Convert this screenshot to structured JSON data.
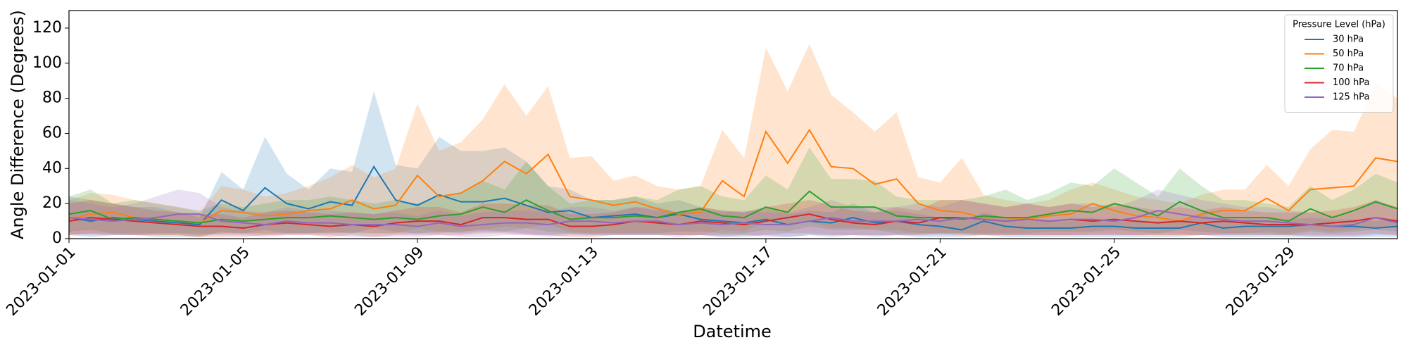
{
  "chart_data": {
    "type": "line",
    "xlabel": "Datetime",
    "ylabel": "Angle Difference (Degrees)",
    "legend_title": "Pressure Level (hPa)",
    "legend_loc": "upper right",
    "categories": [
      "2023-01-01",
      null,
      null,
      null,
      null,
      null,
      null,
      null,
      "2023-01-05",
      null,
      null,
      null,
      null,
      null,
      null,
      null,
      "2023-01-09",
      null,
      null,
      null,
      null,
      null,
      null,
      null,
      "2023-01-13",
      null,
      null,
      null,
      null,
      null,
      null,
      null,
      "2023-01-17",
      null,
      null,
      null,
      null,
      null,
      null,
      null,
      "2023-01-21",
      null,
      null,
      null,
      null,
      null,
      null,
      null,
      "2023-01-25",
      null,
      null,
      null,
      null,
      null,
      null,
      null,
      "2023-01-29",
      null,
      null,
      null,
      null,
      null
    ],
    "ylim": [
      0,
      130
    ],
    "yticks": [
      0,
      20,
      40,
      60,
      80,
      100,
      120
    ],
    "series": [
      {
        "name": "30 hPa",
        "color": "#1f77b4",
        "values": [
          12,
          10,
          12,
          11,
          10,
          9,
          8,
          22,
          16,
          29,
          20,
          17,
          21,
          19,
          41,
          22,
          19,
          25,
          21,
          21,
          23,
          19,
          15,
          16,
          12,
          13,
          14,
          12,
          14,
          11,
          10,
          9,
          11,
          8,
          10,
          9,
          12,
          9,
          10,
          8,
          7,
          5,
          10,
          7,
          6,
          6,
          6,
          7,
          7,
          6,
          6,
          6,
          9,
          6,
          7,
          7,
          7,
          8,
          7,
          7,
          6,
          7
        ],
        "lower": [
          2,
          1,
          2,
          2,
          1,
          1,
          1,
          4,
          3,
          5,
          3,
          3,
          4,
          3,
          6,
          4,
          3,
          4,
          3,
          4,
          4,
          3,
          2,
          3,
          2,
          2,
          2,
          2,
          2,
          2,
          1,
          1,
          2,
          1,
          2,
          1,
          2,
          1,
          2,
          1,
          1,
          1,
          2,
          1,
          1,
          1,
          1,
          1,
          1,
          1,
          1,
          1,
          2,
          1,
          1,
          1,
          1,
          1,
          1,
          1,
          1,
          1
        ],
        "upper": [
          24,
          22,
          20,
          18,
          18,
          15,
          12,
          38,
          28,
          58,
          37,
          28,
          40,
          38,
          84,
          42,
          40,
          58,
          50,
          50,
          52,
          44,
          30,
          28,
          22,
          22,
          24,
          20,
          22,
          18,
          16,
          15,
          18,
          14,
          16,
          15,
          20,
          15,
          16,
          14,
          12,
          10,
          15,
          12,
          10,
          10,
          10,
          11,
          11,
          10,
          10,
          10,
          14,
          10,
          11,
          11,
          11,
          12,
          11,
          11,
          10,
          11
        ]
      },
      {
        "name": "50 hPa",
        "color": "#ff7f0e",
        "values": [
          11,
          14,
          15,
          12,
          11,
          10,
          9,
          16,
          15,
          13,
          14,
          16,
          17,
          22,
          17,
          19,
          36,
          24,
          26,
          33,
          44,
          37,
          48,
          24,
          22,
          19,
          21,
          17,
          14,
          15,
          33,
          24,
          61,
          43,
          62,
          41,
          40,
          31,
          34,
          20,
          16,
          15,
          12,
          12,
          11,
          13,
          14,
          20,
          16,
          13,
          12,
          10,
          14,
          16,
          16,
          23,
          16,
          28,
          29,
          30,
          46,
          44
        ],
        "lower": [
          2,
          3,
          3,
          2,
          2,
          2,
          1,
          3,
          3,
          2,
          3,
          3,
          3,
          4,
          3,
          3,
          6,
          4,
          4,
          5,
          7,
          6,
          8,
          4,
          3,
          3,
          3,
          3,
          2,
          2,
          5,
          4,
          10,
          7,
          10,
          6,
          6,
          5,
          5,
          3,
          3,
          2,
          2,
          2,
          2,
          2,
          2,
          3,
          3,
          2,
          2,
          2,
          2,
          3,
          3,
          4,
          3,
          5,
          4,
          5,
          7,
          6
        ],
        "upper": [
          22,
          26,
          25,
          22,
          20,
          18,
          15,
          30,
          28,
          24,
          26,
          30,
          35,
          42,
          35,
          40,
          77,
          50,
          55,
          68,
          88,
          70,
          87,
          46,
          47,
          33,
          36,
          30,
          28,
          30,
          62,
          46,
          109,
          84,
          111,
          82,
          72,
          61,
          72,
          35,
          32,
          46,
          25,
          22,
          20,
          22,
          28,
          32,
          28,
          24,
          22,
          20,
          25,
          28,
          28,
          42,
          30,
          51,
          62,
          61,
          88,
          80
        ]
      },
      {
        "name": "70 hPa",
        "color": "#2ca02c",
        "values": [
          14,
          16,
          11,
          12,
          11,
          10,
          9,
          11,
          10,
          11,
          12,
          12,
          13,
          12,
          11,
          12,
          11,
          13,
          14,
          18,
          15,
          22,
          16,
          11,
          12,
          12,
          13,
          12,
          15,
          17,
          13,
          12,
          18,
          15,
          27,
          18,
          18,
          18,
          13,
          12,
          12,
          11,
          13,
          12,
          12,
          14,
          16,
          15,
          20,
          17,
          13,
          21,
          16,
          12,
          12,
          12,
          10,
          17,
          12,
          16,
          21,
          17
        ],
        "lower": [
          4,
          5,
          3,
          3,
          3,
          3,
          2,
          3,
          3,
          3,
          3,
          3,
          3,
          3,
          3,
          3,
          3,
          3,
          4,
          5,
          4,
          6,
          4,
          3,
          3,
          3,
          3,
          3,
          4,
          4,
          3,
          3,
          5,
          4,
          7,
          5,
          5,
          5,
          3,
          3,
          3,
          3,
          3,
          3,
          3,
          4,
          4,
          4,
          5,
          4,
          3,
          5,
          4,
          3,
          3,
          3,
          2,
          4,
          3,
          4,
          5,
          4
        ],
        "upper": [
          24,
          28,
          20,
          22,
          20,
          18,
          16,
          20,
          18,
          20,
          22,
          22,
          24,
          22,
          20,
          22,
          20,
          24,
          26,
          33,
          28,
          44,
          30,
          20,
          22,
          22,
          24,
          22,
          28,
          30,
          24,
          22,
          36,
          28,
          52,
          34,
          34,
          33,
          24,
          22,
          22,
          22,
          24,
          28,
          22,
          26,
          32,
          30,
          40,
          32,
          24,
          40,
          30,
          22,
          22,
          20,
          18,
          30,
          22,
          28,
          37,
          32
        ]
      },
      {
        "name": "100 hPa",
        "color": "#d62728",
        "values": [
          10,
          12,
          11,
          10,
          9,
          8,
          7,
          7,
          6,
          8,
          9,
          8,
          7,
          8,
          7,
          9,
          10,
          10,
          8,
          12,
          12,
          11,
          11,
          7,
          7,
          8,
          10,
          9,
          8,
          10,
          9,
          8,
          10,
          12,
          14,
          11,
          9,
          8,
          10,
          9,
          12,
          12,
          11,
          10,
          11,
          10,
          11,
          10,
          11,
          10,
          9,
          10,
          9,
          10,
          9,
          8,
          8,
          8,
          9,
          10,
          12,
          10
        ],
        "lower": [
          2,
          3,
          2,
          2,
          2,
          2,
          1,
          1,
          1,
          2,
          2,
          2,
          1,
          2,
          1,
          2,
          2,
          2,
          2,
          3,
          3,
          2,
          2,
          1,
          1,
          2,
          2,
          2,
          2,
          2,
          2,
          2,
          2,
          3,
          3,
          2,
          2,
          2,
          2,
          2,
          3,
          3,
          2,
          2,
          2,
          2,
          2,
          2,
          2,
          2,
          2,
          2,
          2,
          2,
          2,
          2,
          2,
          2,
          2,
          2,
          3,
          2
        ],
        "upper": [
          20,
          22,
          20,
          18,
          16,
          15,
          14,
          14,
          12,
          15,
          16,
          15,
          14,
          15,
          14,
          16,
          18,
          18,
          15,
          20,
          20,
          19,
          19,
          14,
          14,
          15,
          18,
          16,
          15,
          18,
          16,
          15,
          18,
          20,
          22,
          19,
          16,
          15,
          18,
          16,
          22,
          22,
          20,
          18,
          20,
          18,
          20,
          18,
          20,
          18,
          16,
          18,
          16,
          18,
          16,
          15,
          15,
          15,
          16,
          18,
          22,
          18
        ]
      },
      {
        "name": "125 hPa",
        "color": "#9467bd",
        "values": [
          12,
          11,
          10,
          11,
          12,
          14,
          14,
          10,
          9,
          8,
          10,
          9,
          9,
          8,
          8,
          8,
          7,
          9,
          7,
          8,
          9,
          9,
          8,
          10,
          10,
          9,
          10,
          10,
          8,
          9,
          8,
          9,
          8,
          8,
          10,
          12,
          10,
          10,
          10,
          11,
          10,
          12,
          11,
          10,
          11,
          10,
          11,
          11,
          10,
          12,
          16,
          14,
          12,
          11,
          10,
          10,
          9,
          8,
          7,
          8,
          12,
          9
        ],
        "lower": [
          3,
          2,
          2,
          2,
          3,
          3,
          3,
          2,
          2,
          1,
          2,
          2,
          2,
          1,
          1,
          1,
          1,
          2,
          1,
          1,
          2,
          2,
          1,
          2,
          2,
          2,
          2,
          2,
          1,
          2,
          1,
          2,
          1,
          1,
          2,
          2,
          2,
          2,
          2,
          2,
          2,
          2,
          2,
          2,
          2,
          2,
          2,
          2,
          2,
          2,
          3,
          3,
          2,
          2,
          2,
          2,
          2,
          1,
          1,
          1,
          2,
          2
        ],
        "upper": [
          22,
          20,
          18,
          20,
          24,
          28,
          26,
          18,
          16,
          15,
          18,
          16,
          16,
          15,
          14,
          15,
          13,
          16,
          13,
          15,
          16,
          16,
          15,
          18,
          18,
          16,
          18,
          18,
          15,
          16,
          15,
          16,
          15,
          15,
          18,
          22,
          18,
          18,
          18,
          20,
          18,
          22,
          20,
          18,
          20,
          18,
          20,
          20,
          18,
          22,
          28,
          25,
          22,
          20,
          18,
          18,
          16,
          15,
          13,
          15,
          22,
          16
        ]
      }
    ]
  }
}
